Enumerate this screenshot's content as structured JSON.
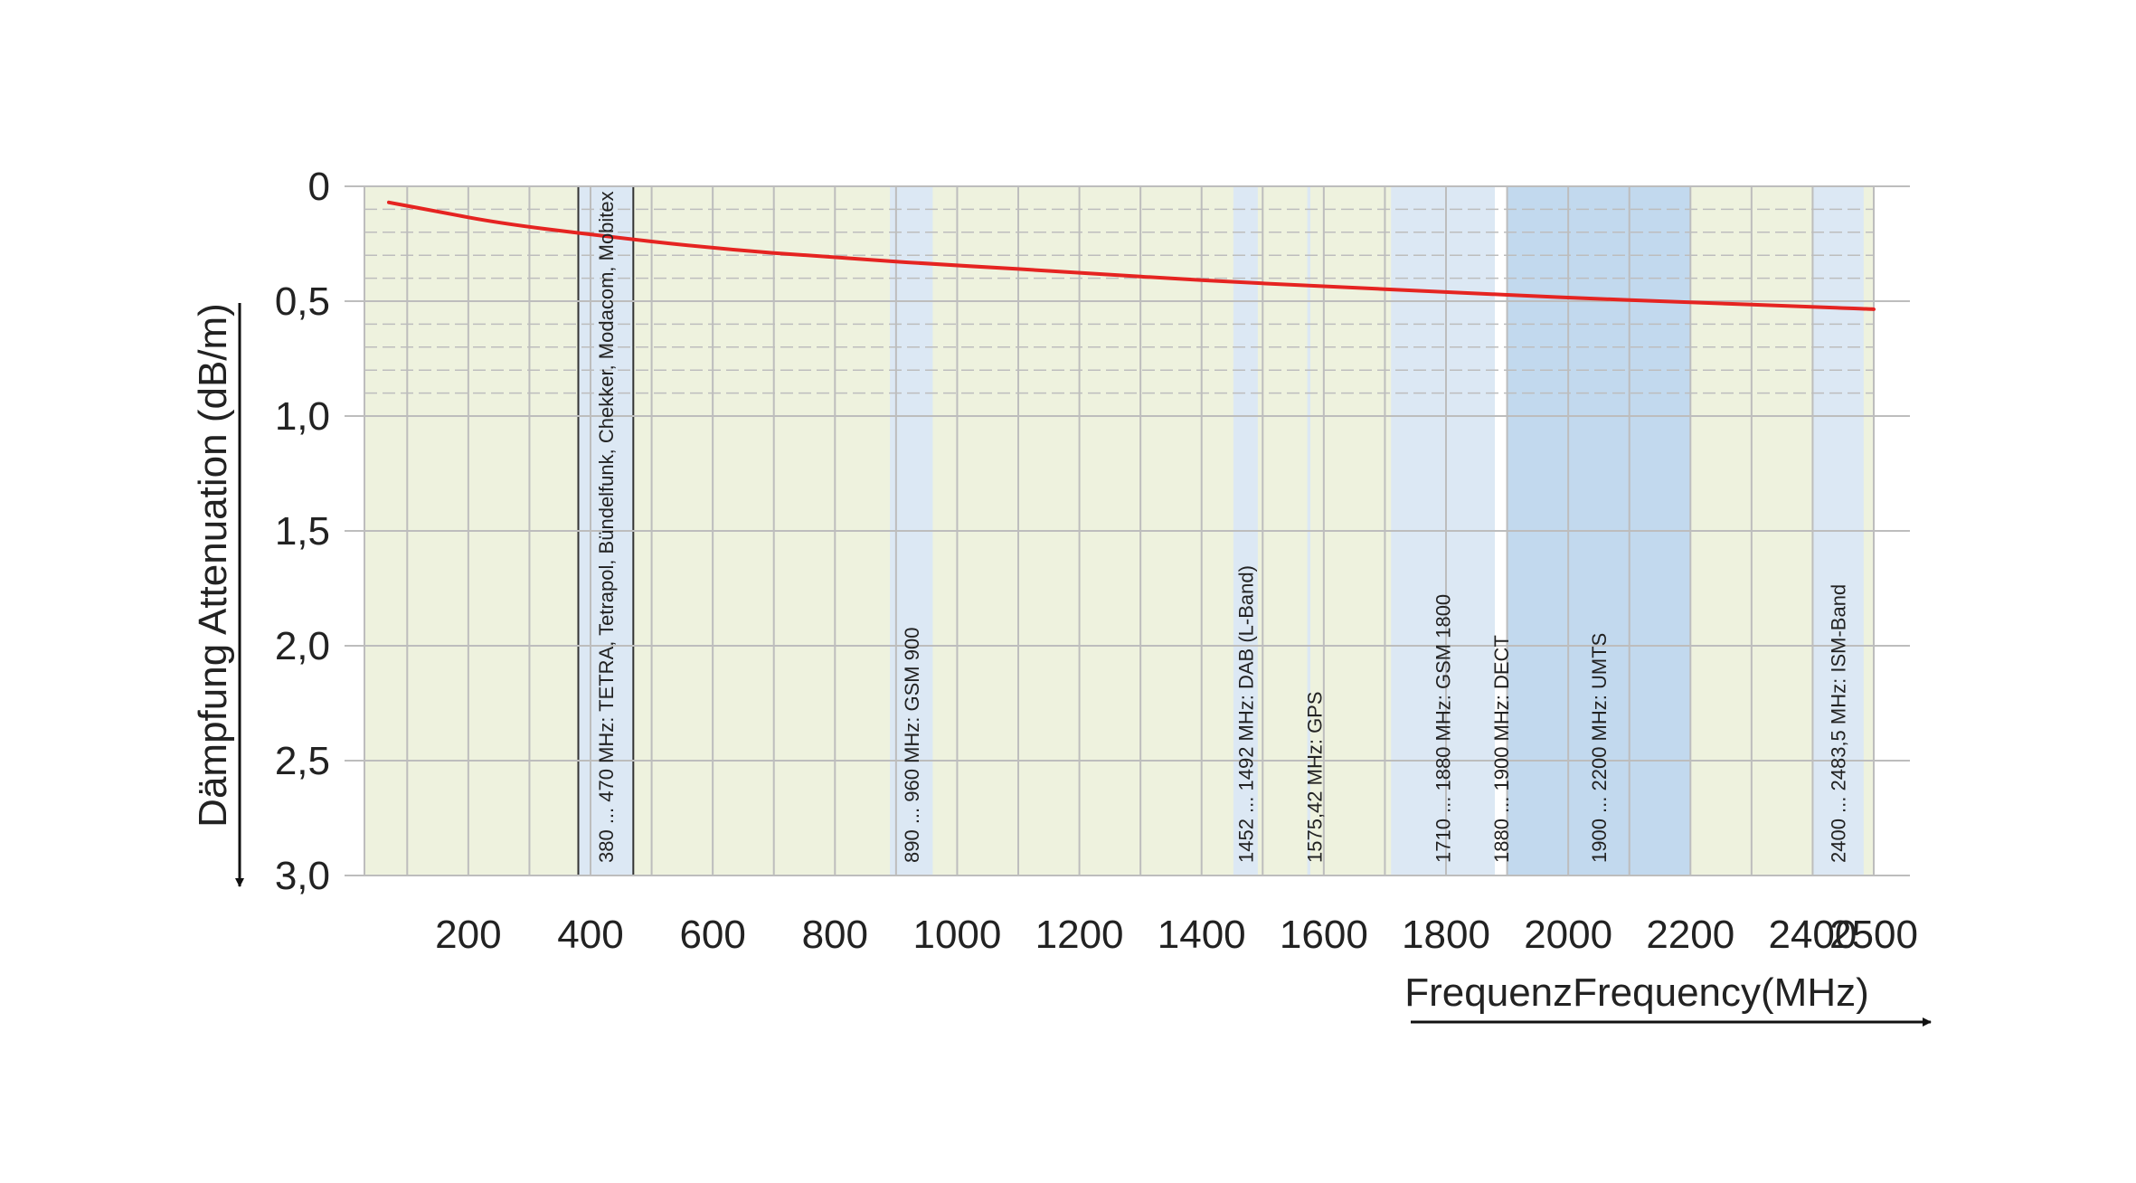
{
  "chart_data": {
    "type": "line",
    "ylabel": "Dämpfung   Attenuation  (dB/m)",
    "xlabel": "FrequenzFrequency(MHz)",
    "x_ticks": [
      200,
      400,
      600,
      800,
      1000,
      1200,
      1400,
      1600,
      1800,
      2000,
      2200,
      2400,
      2500
    ],
    "y_ticks": [
      "0",
      "0,5",
      "1,0",
      "1,5",
      "2,0",
      "2,5",
      "3,0"
    ],
    "xlim": [
      30,
      2500
    ],
    "ylim": [
      0,
      3.0
    ],
    "y_inverted": true,
    "grid": true,
    "series": [
      {
        "color": "#e52421",
        "x": [
          70,
          150,
          250,
          400,
          600,
          800,
          1000,
          1200,
          1400,
          1600,
          1800,
          2000,
          2200,
          2400,
          2500
        ],
        "y": [
          0.07,
          0.11,
          0.16,
          0.21,
          0.27,
          0.31,
          0.345,
          0.375,
          0.41,
          0.435,
          0.46,
          0.485,
          0.505,
          0.525,
          0.535
        ]
      }
    ],
    "bands": [
      {
        "x0": 380,
        "x1": 470,
        "label": "380 ... 470 MHz:  TETRA, Tetrapol, Bündelfunk, Chekker, Modacom, Mobitex",
        "outlined": true
      },
      {
        "x0": 890,
        "x1": 960,
        "label": "890 ... 960 MHz:  GSM 900"
      },
      {
        "x0": 1452,
        "x1": 1492,
        "label": "1452 ... 1492 MHz:  DAB (L-Band)"
      },
      {
        "x0": 1573,
        "x1": 1578,
        "label": "1575,42 MHz:  GPS"
      },
      {
        "x0": 1710,
        "x1": 1880,
        "label": "1710 ... 1880 MHz:  GSM 1800"
      },
      {
        "x0": 1880,
        "x1": 1900,
        "label": "1880 ... 1900 MHz:  DECT",
        "white": true
      },
      {
        "x0": 1900,
        "x1": 2200,
        "label": "1900 ... 2200 MHz:  UMTS",
        "dark": true
      },
      {
        "x0": 2400,
        "x1": 2483.5,
        "label": "2400 ... 2483,5 MHz:  ISM-Band"
      }
    ],
    "colors": {
      "plot_bg": "#eef2de",
      "band": "#dce8f4",
      "band_dark": "#c2d9ee",
      "grid": "#bdbdbd",
      "curve": "#e52421"
    }
  }
}
